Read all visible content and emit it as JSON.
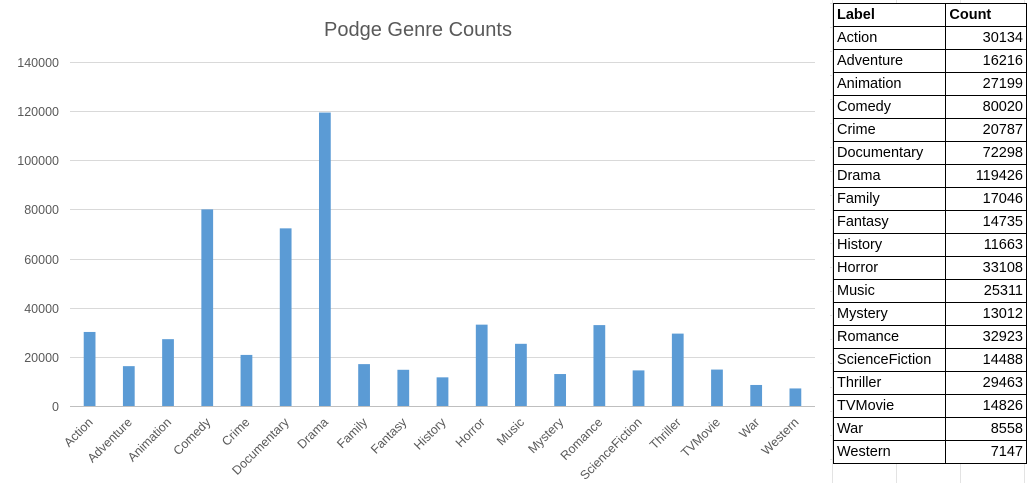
{
  "chart_data": {
    "type": "bar",
    "title": "Podge Genre Counts",
    "xlabel": "",
    "ylabel": "",
    "ylim": [
      0,
      140000
    ],
    "yticks": [
      0,
      20000,
      40000,
      60000,
      80000,
      100000,
      120000,
      140000
    ],
    "grid": true,
    "legend": "none",
    "bar_color": "#5b9bd5",
    "categories": [
      "Action",
      "Adventure",
      "Animation",
      "Comedy",
      "Crime",
      "Documentary",
      "Drama",
      "Family",
      "Fantasy",
      "History",
      "Horror",
      "Music",
      "Mystery",
      "Romance",
      "ScienceFiction",
      "Thriller",
      "TVMovie",
      "War",
      "Western"
    ],
    "values": [
      30134,
      16216,
      27199,
      80020,
      20787,
      72298,
      119426,
      17046,
      14735,
      11663,
      33108,
      25311,
      13012,
      32923,
      14488,
      29463,
      14826,
      8558,
      7147
    ]
  },
  "table": {
    "headers": {
      "label": "Label",
      "count": "Count"
    },
    "rows": [
      {
        "label": "Action",
        "count": "30134"
      },
      {
        "label": "Adventure",
        "count": "16216"
      },
      {
        "label": "Animation",
        "count": "27199"
      },
      {
        "label": "Comedy",
        "count": "80020"
      },
      {
        "label": "Crime",
        "count": "20787"
      },
      {
        "label": "Documentary",
        "count": "72298"
      },
      {
        "label": "Drama",
        "count": "119426"
      },
      {
        "label": "Family",
        "count": "17046"
      },
      {
        "label": "Fantasy",
        "count": "14735"
      },
      {
        "label": "History",
        "count": "11663"
      },
      {
        "label": "Horror",
        "count": "33108"
      },
      {
        "label": "Music",
        "count": "25311"
      },
      {
        "label": "Mystery",
        "count": "13012"
      },
      {
        "label": "Romance",
        "count": "32923"
      },
      {
        "label": "ScienceFiction",
        "count": "14488"
      },
      {
        "label": "Thriller",
        "count": "29463"
      },
      {
        "label": "TVMovie",
        "count": "14826"
      },
      {
        "label": "War",
        "count": "8558"
      },
      {
        "label": "Western",
        "count": "7147"
      }
    ]
  }
}
